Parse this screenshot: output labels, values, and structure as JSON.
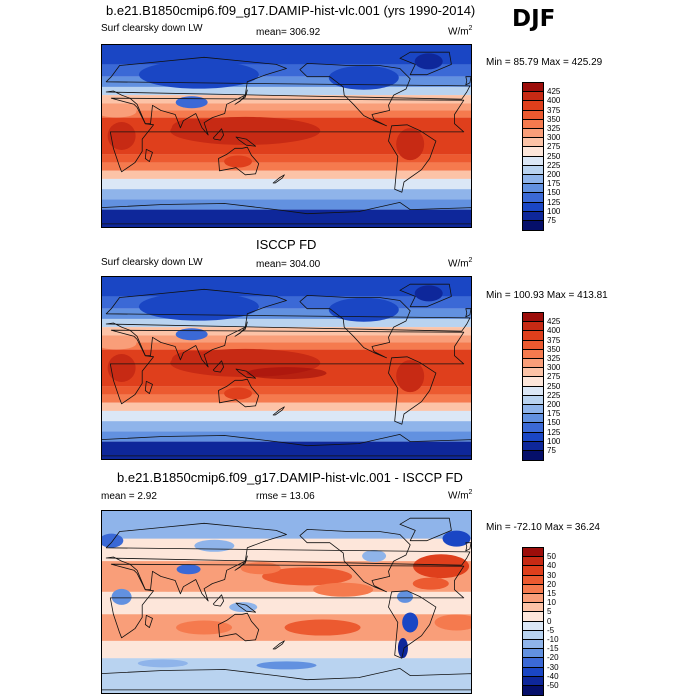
{
  "header": {
    "title": "b.e21.B1850cmip6.f09_g17.DAMIP-hist-vlc.001 (yrs 1990-2014)",
    "season": "DJF"
  },
  "panel1": {
    "variable": "Surf clearsky down LW",
    "mean": "mean= 306.92",
    "units_base": "W/m",
    "units_exp": "2",
    "minmax": "Min =  85.79 Max = 425.29"
  },
  "panel2": {
    "title": "ISCCP FD",
    "variable": "Surf clearsky down LW",
    "mean": "mean= 304.00",
    "units_base": "W/m",
    "units_exp": "2",
    "minmax": "Min = 100.93 Max = 413.81"
  },
  "panel3": {
    "title": "b.e21.B1850cmip6.f09_g17.DAMIP-hist-vlc.001 - ISCCP FD",
    "mean": "mean =   2.92",
    "rmse": "rmse =  13.06",
    "units_base": "W/m",
    "units_exp": "2",
    "minmax": "Min = -72.10 Max =  36.24"
  },
  "chart_data": [
    {
      "type": "heatmap",
      "title": "Surf clearsky down LW",
      "subtitle": "b.e21.B1850cmip6.f09_g17.DAMIP-hist-vlc.001 (yrs 1990-2014)",
      "mean": 306.92,
      "min": 85.79,
      "max": 425.29,
      "colorbar_levels": [
        425,
        400,
        375,
        350,
        325,
        300,
        275,
        250,
        225,
        200,
        175,
        150,
        125,
        100,
        75
      ],
      "colorbar_colors": [
        "#9c0d0a",
        "#c72a14",
        "#df3f1c",
        "#ec5a30",
        "#f57a4e",
        "#f99e79",
        "#fcc3a7",
        "#fde6da",
        "#dbe7f6",
        "#b9d3f0",
        "#8fb4ea",
        "#6291e0",
        "#3b69d6",
        "#1a46c4",
        "#0e279a",
        "#050f6a"
      ],
      "legend": "right"
    },
    {
      "type": "heatmap",
      "title": "ISCCP FD",
      "subtitle": "Surf clearsky down LW",
      "mean": 304.0,
      "min": 100.93,
      "max": 413.81,
      "colorbar_levels": [
        425,
        400,
        375,
        350,
        325,
        300,
        275,
        250,
        225,
        200,
        175,
        150,
        125,
        100,
        75
      ],
      "colorbar_colors": [
        "#9c0d0a",
        "#c72a14",
        "#df3f1c",
        "#ec5a30",
        "#f57a4e",
        "#f99e79",
        "#fcc3a7",
        "#fde6da",
        "#dbe7f6",
        "#b9d3f0",
        "#8fb4ea",
        "#6291e0",
        "#3b69d6",
        "#1a46c4",
        "#0e279a",
        "#050f6a"
      ],
      "legend": "right"
    },
    {
      "type": "heatmap",
      "title": "b.e21.B1850cmip6.f09_g17.DAMIP-hist-vlc.001 - ISCCP FD",
      "mean": 2.92,
      "rmse": 13.06,
      "min": -72.1,
      "max": 36.24,
      "colorbar_levels": [
        50,
        40,
        30,
        20,
        15,
        10,
        5,
        0,
        -5,
        -10,
        -15,
        -20,
        -30,
        -40,
        -50
      ],
      "colorbar_colors": [
        "#9c0d0a",
        "#c72a14",
        "#df3f1c",
        "#ec5a30",
        "#f57a4e",
        "#f99e79",
        "#fcc3a7",
        "#fde6da",
        "#dbe7f6",
        "#b9d3f0",
        "#8fb4ea",
        "#6291e0",
        "#3b69d6",
        "#1a46c4",
        "#0e279a",
        "#050f6a"
      ],
      "legend": "right"
    }
  ]
}
